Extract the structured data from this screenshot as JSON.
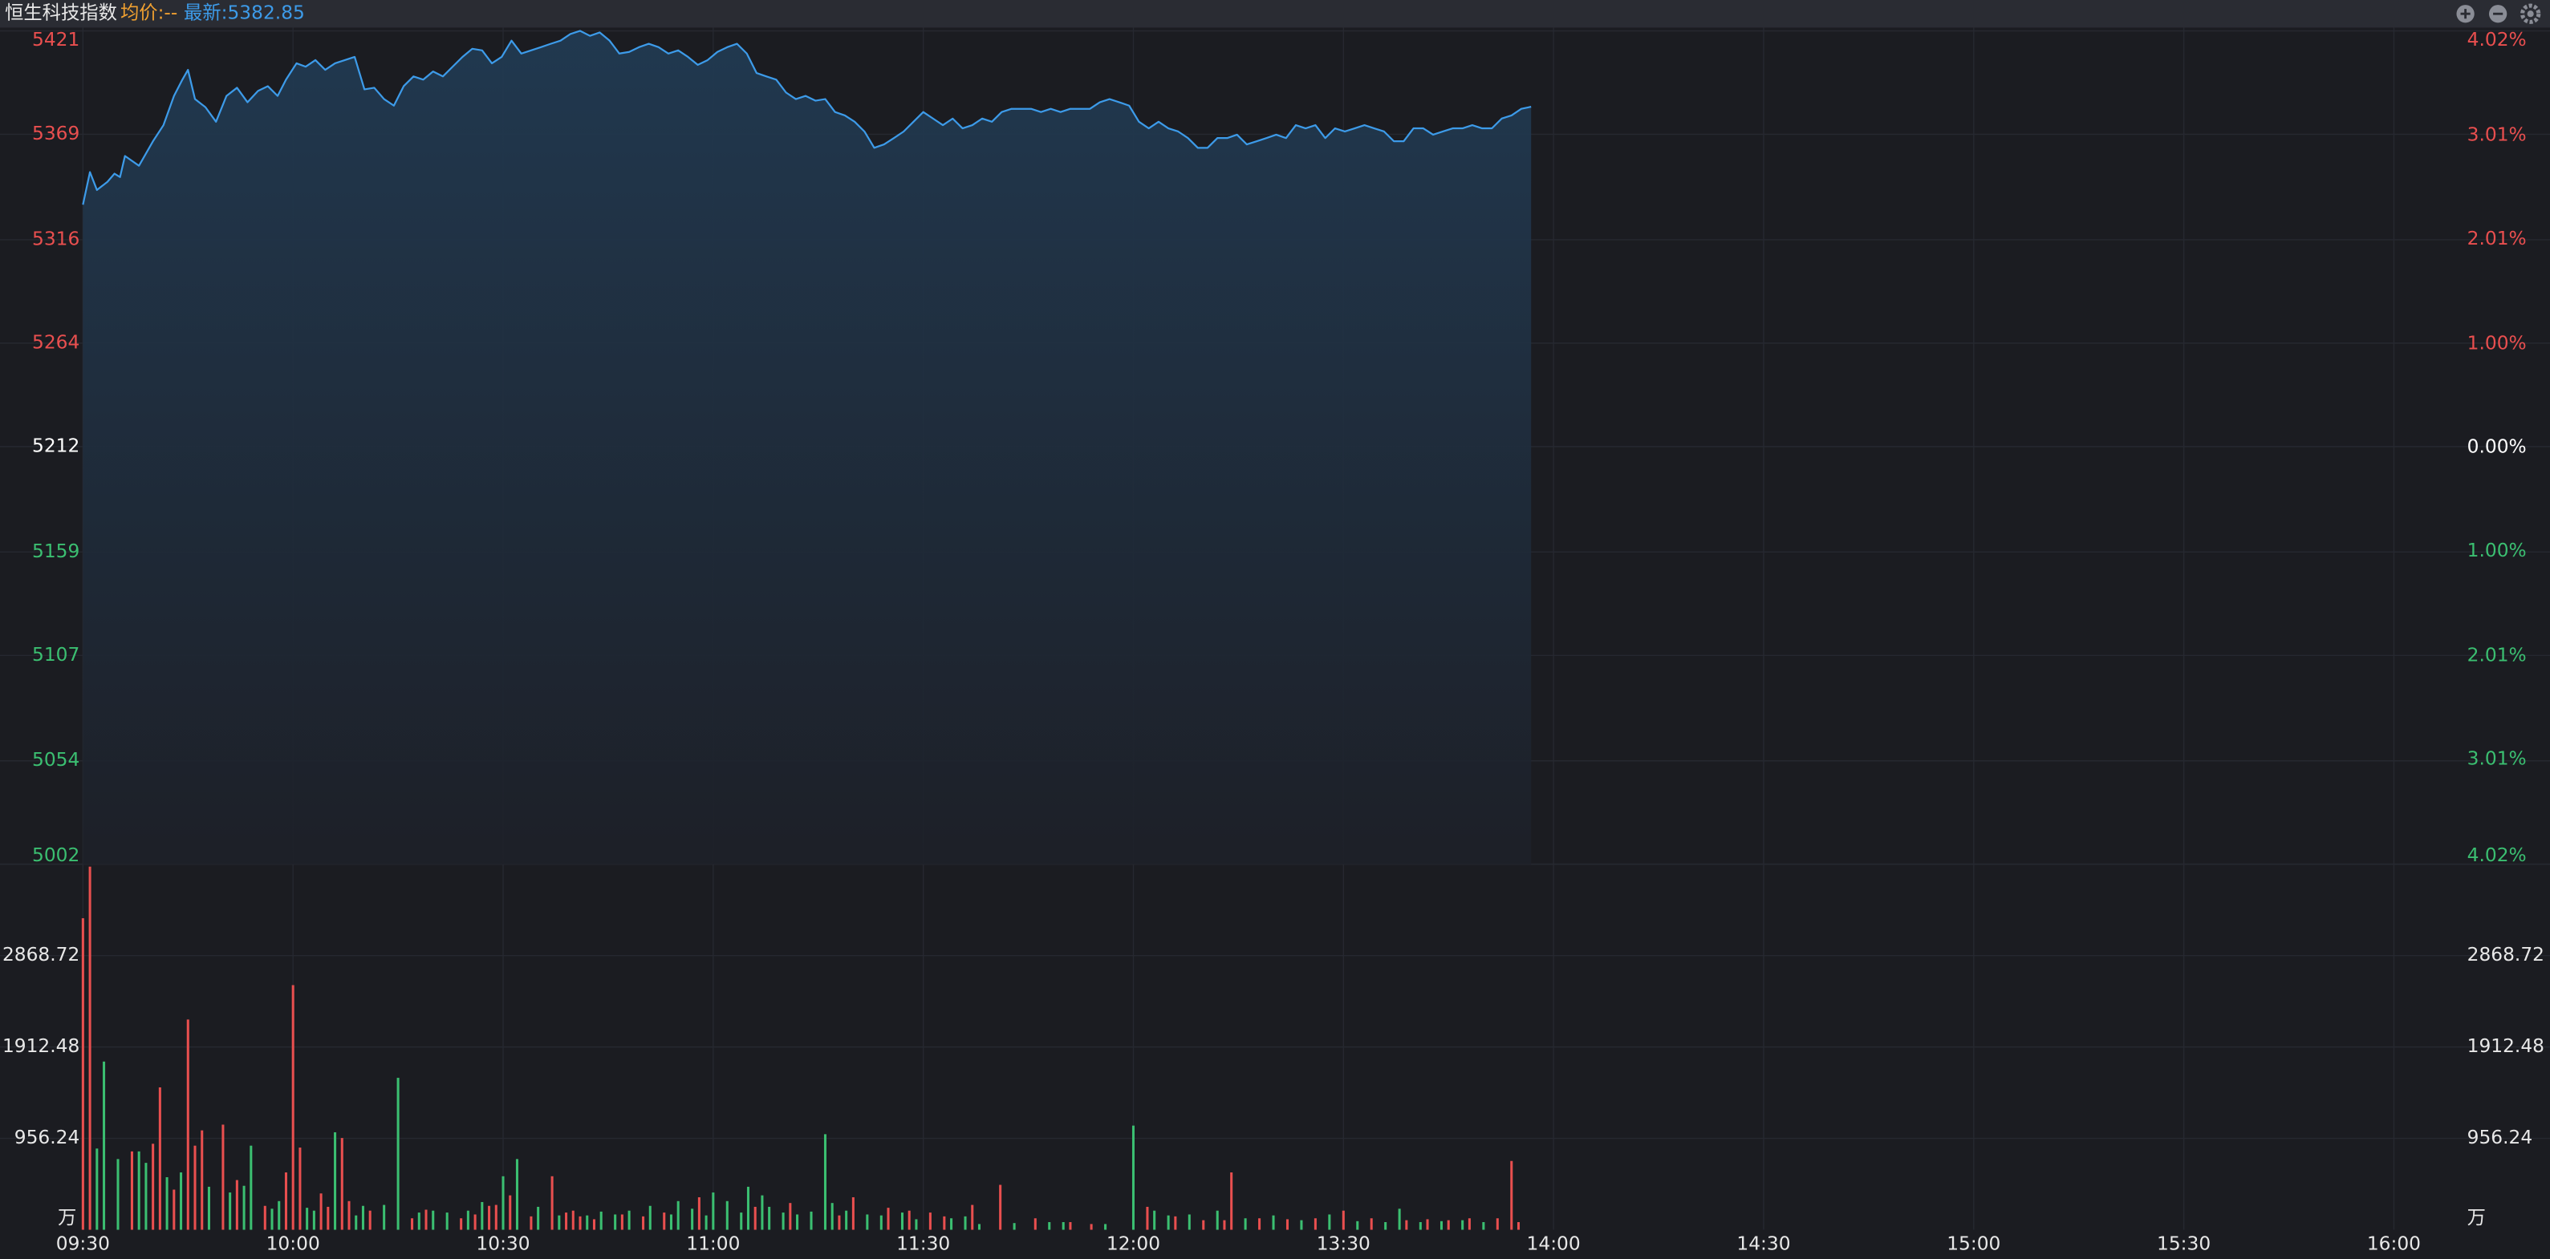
{
  "chart_data": [
    {
      "type": "line",
      "title": "恒生科技指数",
      "annotations": [
        "均价:--",
        "最新:5382.85"
      ],
      "color": "#3d9be9",
      "up_color": "#e94f4f",
      "flat_color": "#ffffff",
      "down_color": "#3bbf71",
      "grid": true,
      "xlim": [
        0,
        330
      ],
      "x": [
        0,
        1,
        2,
        3.5,
        4.5,
        5.3,
        6,
        8,
        10,
        11.5,
        13,
        14.2,
        15,
        16,
        17.5,
        19,
        20.5,
        22,
        23.5,
        25,
        26.4,
        27.8,
        29,
        30.5,
        31.8,
        33.2,
        34.6,
        36,
        37.4,
        38.8,
        40.2,
        41.6,
        43.0,
        44.4,
        45.8,
        47.2,
        48.6,
        50.0,
        51.4,
        52.8,
        54.2,
        55.6,
        57.0,
        58.4,
        59.8,
        61.2,
        62.6,
        64.0,
        65.4,
        66.8,
        68.2,
        69.6,
        71.0,
        72.4,
        73.8,
        75.2,
        76.6,
        78.0,
        79.4,
        80.8,
        82.2,
        83.6,
        85.0,
        86.4,
        87.8,
        89.2,
        90.6,
        92.0,
        93.4,
        94.8,
        96.2,
        97.6,
        99.0,
        100.4,
        101.8,
        103.2,
        104.6,
        106.0,
        107.4,
        108.8,
        110.2,
        111.6,
        113.0,
        114.4,
        115.8,
        117.2,
        118.6,
        120.0,
        121.4,
        122.8,
        124.2,
        125.6,
        127.0,
        128.4,
        129.8,
        131.2,
        132.6,
        134.0,
        135.4,
        136.8,
        138.2,
        139.6,
        141.0,
        142.4,
        143.8,
        145.2,
        146.6,
        148.0,
        149.4,
        150.8,
        152.2,
        153.6,
        155.0,
        156.4,
        157.8,
        159.2,
        160.6,
        162.0,
        163.4,
        164.8,
        166.2,
        167.6,
        169.0,
        170.4,
        171.8,
        173.2,
        174.6,
        176.0,
        177.4,
        178.8,
        180.2,
        181.6,
        183.0,
        184.4,
        185.8,
        187.2,
        188.6,
        190.0,
        191.4,
        192.8,
        194.2,
        195.6,
        197.0,
        198.4,
        199.8,
        201.2,
        202.6,
        204.0,
        205.4,
        206.8
      ],
      "values": [
        5333.6,
        5350.0,
        5341.0,
        5345.1,
        5349.2,
        5347.5,
        5358.1,
        5353.2,
        5365.5,
        5373.6,
        5388.3,
        5396.5,
        5401.4,
        5386.7,
        5382.6,
        5375.3,
        5388.3,
        5392.4,
        5385.1,
        5390.8,
        5393.2,
        5388.3,
        5396.5,
        5404.7,
        5403.0,
        5406.3,
        5401.4,
        5404.7,
        5406.3,
        5407.9,
        5391.6,
        5392.4,
        5386.7,
        5383.4,
        5393.2,
        5398.1,
        5396.5,
        5400.6,
        5398.1,
        5403.0,
        5407.9,
        5412.0,
        5411.2,
        5404.7,
        5407.9,
        5416.1,
        5409.6,
        5411.2,
        5412.8,
        5414.5,
        5416.1,
        5419.4,
        5421.0,
        5418.5,
        5420.2,
        5416.1,
        5409.6,
        5410.4,
        5412.8,
        5414.5,
        5412.8,
        5409.6,
        5411.2,
        5407.9,
        5403.9,
        5406.3,
        5410.4,
        5412.8,
        5414.5,
        5409.6,
        5399.8,
        5398.1,
        5396.5,
        5390.0,
        5386.7,
        5388.3,
        5385.9,
        5386.7,
        5380.2,
        5378.5,
        5375.3,
        5370.4,
        5362.2,
        5363.9,
        5367.1,
        5370.4,
        5375.3,
        5380.2,
        5376.9,
        5373.6,
        5376.9,
        5372.0,
        5373.6,
        5376.9,
        5375.3,
        5380.2,
        5381.8,
        5381.8,
        5381.8,
        5380.2,
        5381.8,
        5380.2,
        5381.8,
        5381.8,
        5381.8,
        5385.1,
        5386.7,
        5385.1,
        5383.4,
        5375.3,
        5372.0,
        5375.3,
        5372.0,
        5370.4,
        5367.1,
        5362.2,
        5362.2,
        5367.1,
        5367.1,
        5368.8,
        5363.9,
        5365.5,
        5367.1,
        5368.8,
        5367.1,
        5373.6,
        5372.0,
        5373.6,
        5367.1,
        5372.0,
        5370.4,
        5372.0,
        5373.6,
        5372.0,
        5370.4,
        5365.5,
        5365.5,
        5372.0,
        5372.0,
        5368.8,
        5370.4,
        5372.0,
        5372.0,
        5373.6,
        5372.0,
        5372.0,
        5376.9,
        5378.5,
        5381.8,
        5382.85
      ],
      "ylim": [
        5002,
        5421
      ],
      "yticks": [
        5421,
        5369,
        5316,
        5264,
        5212,
        5159,
        5107,
        5054,
        5002
      ],
      "y2lim": [
        -4.02,
        4.02
      ],
      "y2ticks": [
        {
          "value": 4.02,
          "label": "4.02%"
        },
        {
          "value": 3.01,
          "label": "3.01%"
        },
        {
          "value": 2.01,
          "label": "2.01%"
        },
        {
          "value": 1.0,
          "label": "1.00%"
        },
        {
          "value": 0,
          "label": "0.00%"
        },
        {
          "value": -1.0,
          "label": "1.00%"
        },
        {
          "value": -2.01,
          "label": "2.01%"
        },
        {
          "value": -3.01,
          "label": "3.01%"
        },
        {
          "value": -4.02,
          "label": "4.02%"
        }
      ]
    },
    {
      "type": "bar",
      "unit": "万",
      "grid": true,
      "xlim": [
        0,
        330
      ],
      "xticks": [
        {
          "value": 0,
          "label": "09:30"
        },
        {
          "value": 30,
          "label": "10:00"
        },
        {
          "value": 60,
          "label": "10:30"
        },
        {
          "value": 90,
          "label": "11:00"
        },
        {
          "value": 120,
          "label": "11:30"
        },
        {
          "value": 150,
          "label": "12:00"
        },
        {
          "value": 180,
          "label": "13:30"
        },
        {
          "value": 210,
          "label": "14:00"
        },
        {
          "value": 240,
          "label": "14:30"
        },
        {
          "value": 270,
          "label": "15:00"
        },
        {
          "value": 300,
          "label": "15:30"
        },
        {
          "value": 330,
          "label": "16:00"
        }
      ],
      "ylim": [
        0,
        3825
      ],
      "yticks": [
        2868.72,
        1912.48,
        956.24
      ],
      "series": [
        {
          "color": "#e94f4f",
          "x": [
            0,
            1,
            7,
            10,
            11,
            13,
            15,
            16,
            17,
            20,
            22,
            26,
            29,
            30,
            31,
            34,
            35,
            37,
            38,
            41,
            47,
            49,
            54,
            56,
            58,
            59,
            61,
            64,
            67,
            69,
            70,
            71,
            73,
            77,
            80,
            83,
            88,
            96,
            101,
            108,
            110,
            115,
            118,
            121,
            123,
            127,
            131,
            136,
            141,
            144,
            152,
            156,
            160,
            163,
            164,
            168,
            172,
            176,
            180,
            184,
            189,
            192,
            195,
            198,
            202,
            204,
            205
          ],
          "values": [
            3260,
            3800,
            820,
            900,
            1490,
            420,
            2200,
            880,
            1040,
            1100,
            520,
            250,
            600,
            2560,
            860,
            380,
            240,
            960,
            300,
            200,
            120,
            210,
            120,
            160,
            250,
            260,
            360,
            140,
            560,
            180,
            200,
            140,
            110,
            160,
            140,
            180,
            340,
            240,
            280,
            150,
            340,
            230,
            200,
            180,
            140,
            260,
            470,
            120,
            80,
            60,
            240,
            140,
            100,
            100,
            600,
            120,
            110,
            120,
            200,
            120,
            100,
            110,
            100,
            120,
            120,
            720,
            80
          ]
        },
        {
          "color": "#3bbf71",
          "x": [
            2,
            3,
            5,
            8,
            9,
            12,
            14,
            18,
            21,
            23,
            24,
            27,
            28,
            32,
            33,
            36,
            39,
            40,
            43,
            45,
            48,
            50,
            52,
            55,
            57,
            60,
            62,
            65,
            68,
            72,
            74,
            76,
            78,
            81,
            84,
            85,
            87,
            89,
            90,
            92,
            94,
            95,
            97,
            98,
            100,
            102,
            104,
            106,
            107,
            109,
            112,
            114,
            117,
            119,
            124,
            126,
            128,
            133,
            138,
            140,
            146,
            150,
            153,
            155,
            158,
            162,
            166,
            170,
            174,
            178,
            182,
            186,
            188,
            191,
            194,
            197,
            200
          ],
          "values": [
            850,
            1760,
            740,
            820,
            700,
            550,
            600,
            450,
            390,
            460,
            880,
            220,
            300,
            230,
            200,
            1020,
            150,
            250,
            260,
            1590,
            180,
            200,
            180,
            200,
            290,
            560,
            740,
            240,
            150,
            150,
            190,
            160,
            200,
            250,
            160,
            300,
            220,
            150,
            390,
            300,
            180,
            450,
            360,
            240,
            180,
            160,
            190,
            1000,
            280,
            200,
            160,
            150,
            180,
            110,
            120,
            140,
            60,
            70,
            80,
            80,
            60,
            1090,
            200,
            150,
            160,
            200,
            120,
            150,
            100,
            160,
            90,
            80,
            220,
            80,
            90,
            100,
            80
          ]
        }
      ]
    }
  ]
}
